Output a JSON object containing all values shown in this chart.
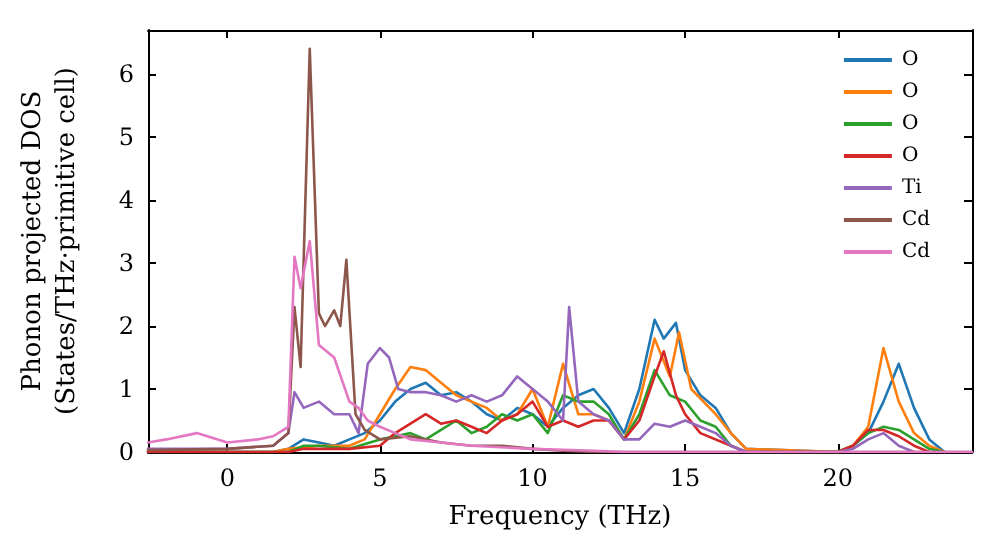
{
  "chart_data": {
    "type": "line",
    "xlabel": "Frequency (THz)",
    "ylabel": "Phonon projected DOS\n(States/THz·primitive cell)",
    "xlim": [
      -2.6,
      24.4
    ],
    "xticks": [
      0,
      5,
      10,
      15,
      20
    ],
    "ylim": [
      0,
      6.7
    ],
    "yticks": [
      0,
      1,
      2,
      3,
      4,
      5,
      6
    ],
    "grid": false,
    "legend": "top right",
    "marker": "none",
    "line_style": "solid",
    "series": [
      {
        "name": "O",
        "color": "#1f77b4",
        "x": [
          -2.6,
          1.5,
          2,
          2.5,
          3,
          3.5,
          4,
          4.5,
          5,
          5.5,
          6,
          6.5,
          7,
          7.5,
          8,
          8.5,
          9,
          9.5,
          10,
          10.5,
          11,
          11.5,
          12,
          12.5,
          13,
          13.5,
          14,
          14.3,
          14.7,
          15,
          15.5,
          16,
          16.5,
          17,
          20,
          20.5,
          21,
          21.5,
          22,
          22.5,
          23,
          23.5
        ],
        "values": [
          0,
          0,
          0.05,
          0.2,
          0.15,
          0.1,
          0.2,
          0.3,
          0.5,
          0.8,
          1.0,
          1.1,
          0.9,
          0.95,
          0.8,
          0.6,
          0.5,
          0.7,
          0.6,
          0.4,
          0.7,
          0.9,
          1.0,
          0.7,
          0.3,
          1.0,
          2.1,
          1.8,
          2.05,
          1.3,
          0.9,
          0.7,
          0.3,
          0.05,
          0,
          0.1,
          0.3,
          0.8,
          1.4,
          0.7,
          0.2,
          0
        ]
      },
      {
        "name": "O",
        "color": "#ff7f0e",
        "x": [
          -2.6,
          1.5,
          2,
          3,
          4,
          4.5,
          5,
          5.5,
          6,
          6.5,
          7,
          7.5,
          8,
          8.5,
          9,
          9.5,
          10,
          10.5,
          11,
          11.5,
          12,
          12.5,
          13,
          13.5,
          14,
          14.5,
          14.8,
          15.2,
          16,
          16.5,
          17,
          20,
          20.5,
          21,
          21.5,
          22,
          22.5,
          23,
          23.5
        ],
        "values": [
          0,
          0,
          0.05,
          0.1,
          0.1,
          0.2,
          0.6,
          1.0,
          1.35,
          1.3,
          1.1,
          0.9,
          0.8,
          0.7,
          0.5,
          0.6,
          1.0,
          0.4,
          1.4,
          0.6,
          0.6,
          0.5,
          0.2,
          0.8,
          1.8,
          1.2,
          1.9,
          1.0,
          0.6,
          0.3,
          0.05,
          0,
          0.1,
          0.4,
          1.65,
          0.8,
          0.3,
          0.1,
          0
        ]
      },
      {
        "name": "O",
        "color": "#2ca02c",
        "x": [
          -2.6,
          2,
          2.5,
          3,
          4,
          5,
          5.5,
          6,
          6.5,
          7,
          7.5,
          8,
          8.5,
          9,
          9.5,
          10,
          10.5,
          11,
          11.5,
          12,
          12.5,
          13,
          13.5,
          14,
          14.5,
          15,
          15.5,
          16,
          16.5,
          17,
          20,
          20.5,
          21,
          21.5,
          22,
          22.5,
          23,
          23.5
        ],
        "values": [
          0,
          0,
          0.1,
          0.1,
          0.05,
          0.2,
          0.25,
          0.3,
          0.2,
          0.35,
          0.5,
          0.3,
          0.4,
          0.6,
          0.5,
          0.6,
          0.3,
          0.9,
          0.8,
          0.8,
          0.6,
          0.2,
          0.6,
          1.3,
          0.9,
          0.8,
          0.5,
          0.4,
          0.1,
          0,
          0,
          0.1,
          0.3,
          0.4,
          0.35,
          0.2,
          0.05,
          0
        ]
      },
      {
        "name": "O",
        "color": "#d62728",
        "x": [
          -2.6,
          2,
          2.5,
          3,
          4,
          5,
          5.5,
          6,
          6.5,
          7,
          7.5,
          8,
          8.5,
          9,
          9.5,
          10,
          10.5,
          11,
          11.5,
          12,
          12.5,
          13,
          13.5,
          14,
          14.3,
          14.7,
          15,
          15.5,
          16.5,
          17,
          20,
          20.5,
          21,
          21.5,
          22,
          22.5,
          23
        ],
        "values": [
          0,
          0,
          0.05,
          0.05,
          0.05,
          0.1,
          0.3,
          0.45,
          0.6,
          0.45,
          0.5,
          0.4,
          0.3,
          0.5,
          0.6,
          0.8,
          0.4,
          0.5,
          0.4,
          0.5,
          0.5,
          0.2,
          0.5,
          1.2,
          1.6,
          0.9,
          0.6,
          0.3,
          0.1,
          0,
          0,
          0.1,
          0.35,
          0.35,
          0.25,
          0.1,
          0
        ]
      },
      {
        "name": "Ti",
        "color": "#9467bd",
        "x": [
          -2.6,
          0,
          1.5,
          2,
          2.2,
          2.5,
          3,
          3.5,
          4,
          4.3,
          4.6,
          5,
          5.3,
          5.6,
          6,
          6.5,
          7,
          7.5,
          8,
          8.5,
          9,
          9.5,
          10,
          10.5,
          11,
          11.2,
          11.5,
          12,
          12.5,
          13,
          13.5,
          14,
          14.5,
          15,
          15.5,
          16,
          16.5,
          17,
          20,
          20.5,
          21,
          21.5,
          22,
          22.5
        ],
        "values": [
          0.05,
          0.05,
          0.1,
          0.3,
          0.95,
          0.7,
          0.8,
          0.6,
          0.6,
          0.3,
          1.4,
          1.65,
          1.5,
          1.0,
          0.95,
          0.95,
          0.9,
          0.8,
          0.9,
          0.8,
          0.9,
          1.2,
          1.0,
          0.8,
          0.5,
          2.3,
          0.8,
          0.6,
          0.5,
          0.2,
          0.2,
          0.45,
          0.4,
          0.5,
          0.4,
          0.3,
          0.1,
          0,
          0,
          0.05,
          0.2,
          0.3,
          0.1,
          0
        ]
      },
      {
        "name": "Cd",
        "color": "#8c564b",
        "x": [
          -2.6,
          0,
          1.5,
          2,
          2.2,
          2.4,
          2.7,
          3,
          3.2,
          3.5,
          3.7,
          3.9,
          4.2,
          4.5,
          5,
          6,
          7,
          8,
          9,
          10,
          11,
          12,
          24.4
        ],
        "values": [
          0.03,
          0.05,
          0.1,
          0.3,
          2.3,
          1.35,
          6.4,
          2.2,
          2.0,
          2.25,
          2.0,
          3.05,
          0.6,
          0.35,
          0.2,
          0.25,
          0.15,
          0.1,
          0.1,
          0.05,
          0.02,
          0,
          0
        ]
      },
      {
        "name": "Cd",
        "color": "#e377c2",
        "x": [
          -2.6,
          -2,
          -1,
          0,
          1,
          1.5,
          2,
          2.2,
          2.4,
          2.7,
          3,
          3.5,
          4,
          4.3,
          4.6,
          5,
          5.5,
          6,
          7,
          8,
          10,
          12,
          13,
          24.4
        ],
        "values": [
          0.15,
          0.2,
          0.3,
          0.15,
          0.2,
          0.25,
          0.4,
          3.1,
          2.6,
          3.35,
          1.7,
          1.5,
          0.8,
          0.7,
          0.5,
          0.4,
          0.3,
          0.2,
          0.15,
          0.1,
          0.05,
          0.02,
          0,
          0
        ]
      }
    ]
  }
}
